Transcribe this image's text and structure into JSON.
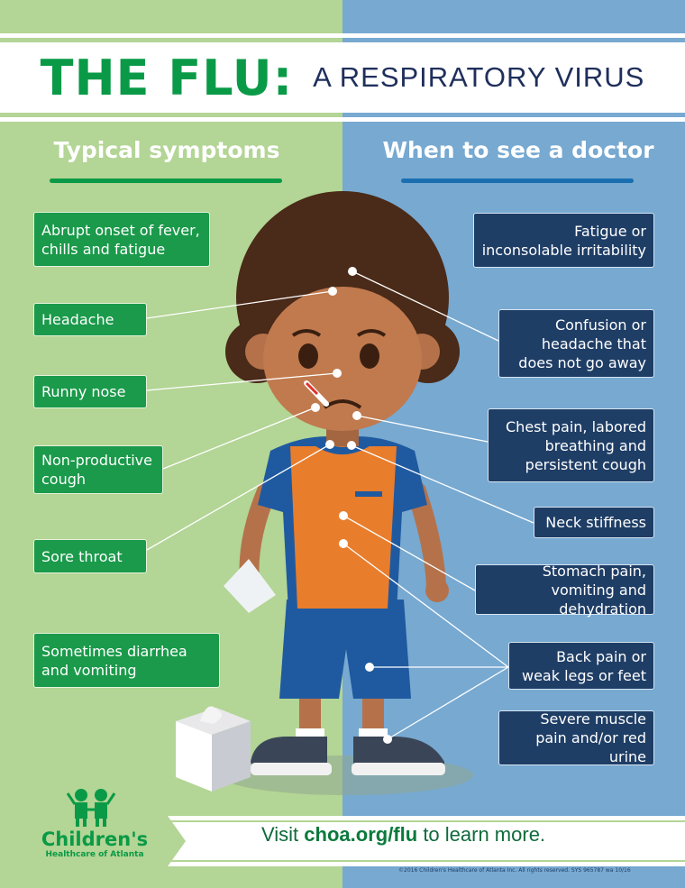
{
  "title": {
    "main": "THE FLU:",
    "sub": "A RESPIRATORY VIRUS"
  },
  "colors": {
    "green_bg": "#b3d595",
    "blue_bg": "#77a9d1",
    "green_box": "#1a9a4a",
    "navy_box": "#1f3e66",
    "title_green": "#0a9a47"
  },
  "left": {
    "heading": "Typical symptoms",
    "items": [
      "Abrupt onset of fever, chills and fatigue",
      "Headache",
      "Runny nose",
      "Non-productive cough",
      "Sore throat",
      "Sometimes diarrhea and vomiting"
    ]
  },
  "right": {
    "heading": "When to see a doctor",
    "items": [
      "Fatigue or inconsolable irritability",
      "Confusion or headache that does not go away",
      "Chest pain, labored breathing and persistent cough",
      "Neck stiffness",
      "Stomach pain, vomiting and dehydration",
      "Back pain or weak legs or feet",
      "Severe muscle pain and/or red urine"
    ]
  },
  "footer": {
    "visit_prefix": "Visit",
    "visit_link": "choa.org/flu",
    "visit_suffix": "to learn more.",
    "logo_name": "Children's",
    "logo_sub": "Healthcare of Atlanta",
    "copyright": "©2016 Children's Healthcare of Atlanta Inc. All rights reserved. SYS 965787 wa 10/16"
  }
}
